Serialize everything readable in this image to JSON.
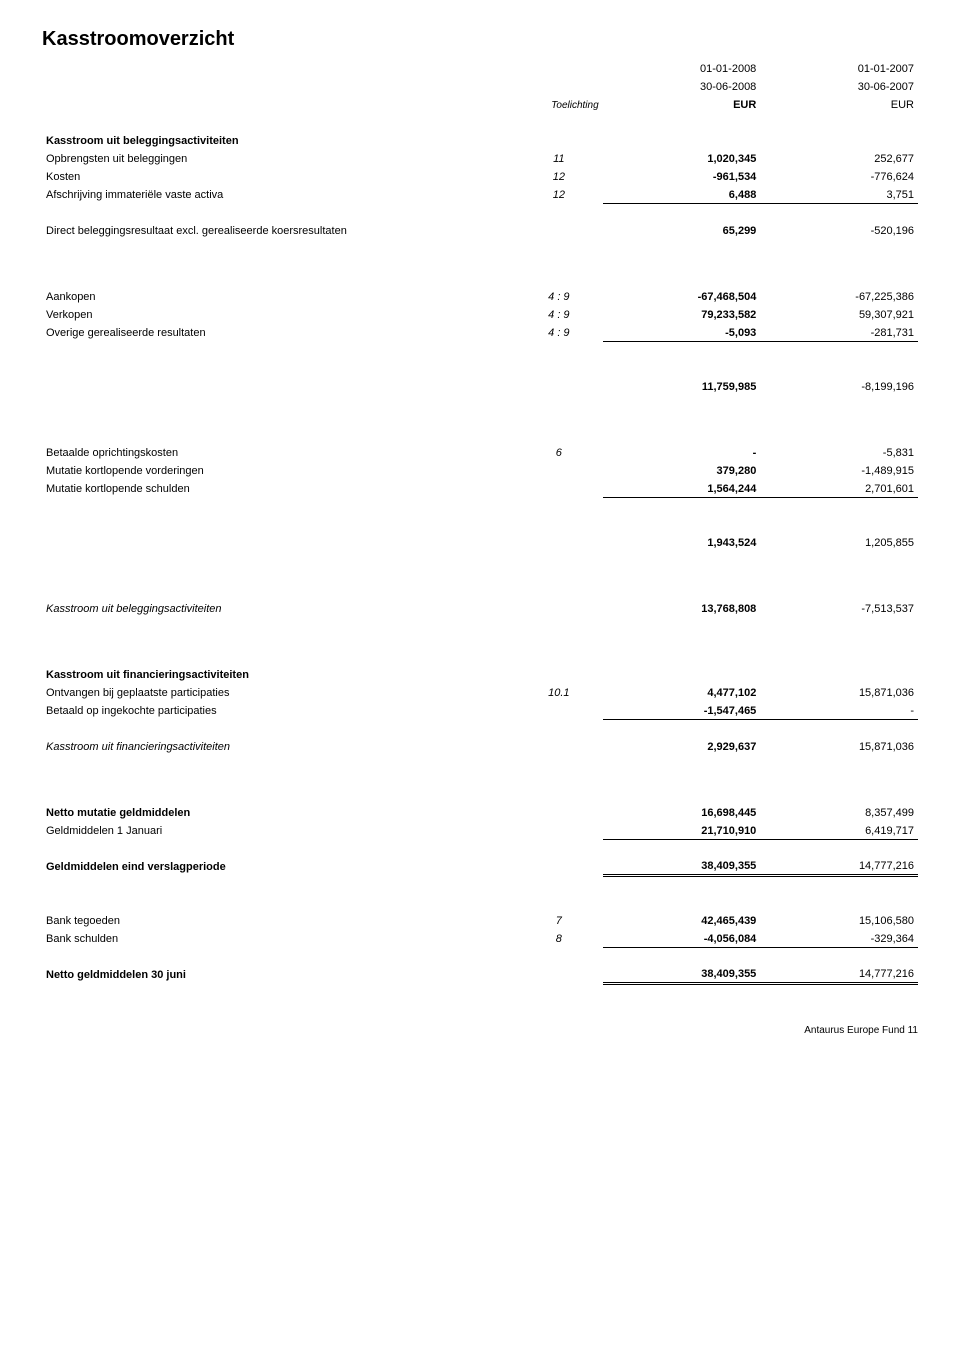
{
  "title": "Kasstroomoverzicht",
  "columns": {
    "note_header": "Toelichting",
    "period1_top": "01-01-2008",
    "period1_bot": "30-06-2008",
    "period1_cur": "EUR",
    "period2_top": "01-01-2007",
    "period2_bot": "30-06-2007",
    "period2_cur": "EUR"
  },
  "sections": {
    "s1_header": "Kasstroom uit beleggingsactiviteiten",
    "s2_header": "Kasstroom uit financieringsactiviteiten"
  },
  "rows": {
    "r1": {
      "label": "Opbrengsten uit beleggingen",
      "note": "11",
      "v1": "1,020,345",
      "v2": "252,677"
    },
    "r2": {
      "label": "Kosten",
      "note": "12",
      "v1": "-961,534",
      "v2": "-776,624"
    },
    "r3": {
      "label": "Afschrijving immateriële vaste activa",
      "note": "12",
      "v1": "6,488",
      "v2": "3,751"
    },
    "r4": {
      "label": "Direct beleggingsresultaat excl. gerealiseerde koersresultaten",
      "note": "",
      "v1": "65,299",
      "v2": "-520,196"
    },
    "r5": {
      "label": "Aankopen",
      "note": "4 : 9",
      "v1": "-67,468,504",
      "v2": "-67,225,386"
    },
    "r6": {
      "label": "Verkopen",
      "note": "4 : 9",
      "v1": "79,233,582",
      "v2": "59,307,921"
    },
    "r7": {
      "label": "Overige gerealiseerde resultaten",
      "note": "4 : 9",
      "v1": "-5,093",
      "v2": "-281,731"
    },
    "r8": {
      "label": "",
      "note": "",
      "v1": "11,759,985",
      "v2": "-8,199,196"
    },
    "r9": {
      "label": "Betaalde oprichtingskosten",
      "note": "6",
      "v1": "-",
      "v2": "-5,831"
    },
    "r10": {
      "label": "Mutatie kortlopende vorderingen",
      "note": "",
      "v1": "379,280",
      "v2": "-1,489,915"
    },
    "r11": {
      "label": "Mutatie kortlopende schulden",
      "note": "",
      "v1": "1,564,244",
      "v2": "2,701,601"
    },
    "r12": {
      "label": "",
      "note": "",
      "v1": "1,943,524",
      "v2": "1,205,855"
    },
    "r13": {
      "label": "Kasstroom uit beleggingsactiviteiten",
      "note": "",
      "v1": "13,768,808",
      "v2": "-7,513,537"
    },
    "r14": {
      "label": "Ontvangen bij geplaatste participaties",
      "note": "10.1",
      "v1": "4,477,102",
      "v2": "15,871,036"
    },
    "r15": {
      "label": "Betaald op ingekochte participaties",
      "note": "",
      "v1": "-1,547,465",
      "v2": "-"
    },
    "r16": {
      "label": "Kasstroom uit financieringsactiviteiten",
      "note": "",
      "v1": "2,929,637",
      "v2": "15,871,036"
    },
    "r17": {
      "label": "Netto mutatie geldmiddelen",
      "note": "",
      "v1": "16,698,445",
      "v2": "8,357,499"
    },
    "r18": {
      "label": "Geldmiddelen 1 Januari",
      "note": "",
      "v1": "21,710,910",
      "v2": "6,419,717"
    },
    "r19": {
      "label": "Geldmiddelen eind verslagperiode",
      "note": "",
      "v1": "38,409,355",
      "v2": "14,777,216"
    },
    "r20": {
      "label": "Bank tegoeden",
      "note": "7",
      "v1": "42,465,439",
      "v2": "15,106,580"
    },
    "r21": {
      "label": "Bank schulden",
      "note": "8",
      "v1": "-4,056,084",
      "v2": "-329,364"
    },
    "r22": {
      "label": "Netto geldmiddelen 30 juni",
      "note": "",
      "v1": "38,409,355",
      "v2": "14,777,216"
    }
  },
  "footer": "Antaurus Europe Fund 11"
}
